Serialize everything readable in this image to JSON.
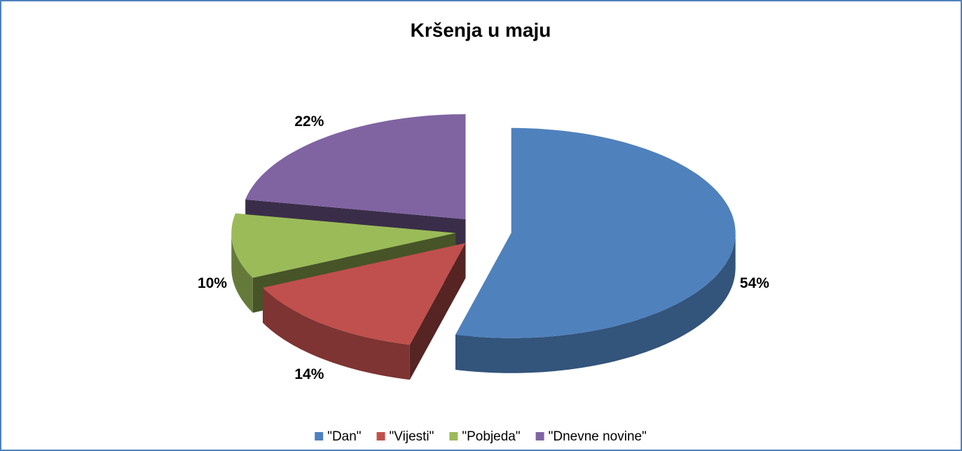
{
  "chart_data": {
    "type": "pie3d",
    "title": "Kršenja u maju",
    "categories": [
      "\"Dan\"",
      "\"Vijesti\"",
      "\"Pobjeda\"",
      "\"Dnevne novine\""
    ],
    "values": [
      54,
      14,
      10,
      22
    ],
    "value_labels": [
      "54%",
      "14%",
      "10%",
      "22%"
    ],
    "colors": [
      "#4f81bd",
      "#c0504d",
      "#9bbb59",
      "#8064a2"
    ],
    "legend": "bottom"
  }
}
